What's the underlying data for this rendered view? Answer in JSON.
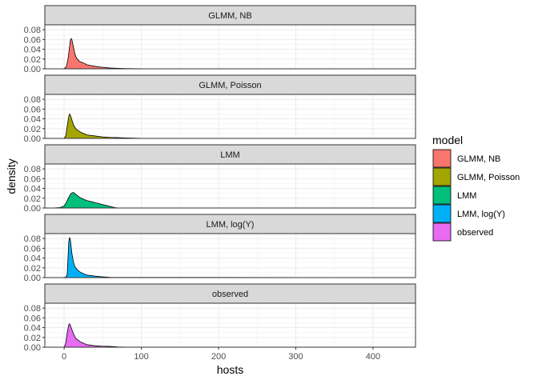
{
  "chart_data": {
    "type": "area",
    "subtype": "faceted density",
    "xlabel": "hosts",
    "ylabel": "density",
    "xlim": [
      -25,
      455
    ],
    "ylim": [
      0,
      0.09
    ],
    "x_ticks": [
      0,
      100,
      200,
      300,
      400
    ],
    "y_ticks": [
      0.0,
      0.02,
      0.04,
      0.06,
      0.08
    ],
    "y_tick_labels": [
      "0.00",
      "0.02",
      "0.04",
      "0.06",
      "0.08"
    ],
    "grid": true,
    "theme": "bw",
    "legend": {
      "title": "model",
      "position": "right",
      "entries": [
        {
          "label": "GLMM, NB",
          "color": "#F8766D"
        },
        {
          "label": "GLMM, Poisson",
          "color": "#A3A500"
        },
        {
          "label": "LMM",
          "color": "#00BF7D"
        },
        {
          "label": "LMM, log(Y)",
          "color": "#00B0F6"
        },
        {
          "label": "observed",
          "color": "#E76BF3"
        }
      ]
    },
    "facets": [
      {
        "label": "GLMM, NB",
        "color": "#F8766D",
        "x": [
          -15,
          0,
          3,
          5,
          7,
          8,
          9,
          10,
          12,
          14,
          16,
          20,
          25,
          30,
          40,
          50,
          60,
          70,
          80,
          100,
          435
        ],
        "density": [
          0,
          0,
          0.005,
          0.02,
          0.045,
          0.058,
          0.062,
          0.06,
          0.045,
          0.03,
          0.022,
          0.015,
          0.012,
          0.008,
          0.005,
          0.003,
          0.0015,
          0.001,
          0.0005,
          0.0002,
          0
        ]
      },
      {
        "label": "GLMM, Poisson",
        "color": "#A3A500",
        "x": [
          -15,
          0,
          2,
          4,
          6,
          7,
          8,
          10,
          12,
          15,
          20,
          25,
          30,
          40,
          50,
          60,
          70,
          80,
          90,
          100,
          435
        ],
        "density": [
          0,
          0,
          0.005,
          0.025,
          0.045,
          0.05,
          0.048,
          0.038,
          0.028,
          0.02,
          0.014,
          0.01,
          0.007,
          0.005,
          0.003,
          0.002,
          0.0015,
          0.001,
          0.0005,
          0.0001,
          0
        ]
      },
      {
        "label": "LMM",
        "color": "#00BF7D",
        "x": [
          -15,
          -5,
          0,
          3,
          6,
          9,
          12,
          15,
          20,
          25,
          30,
          35,
          40,
          45,
          50,
          55,
          60,
          65,
          70,
          435
        ],
        "density": [
          0,
          0.001,
          0.004,
          0.012,
          0.022,
          0.03,
          0.032,
          0.028,
          0.022,
          0.018,
          0.015,
          0.013,
          0.011,
          0.009,
          0.007,
          0.005,
          0.003,
          0.001,
          0,
          0
        ]
      },
      {
        "label": "LMM, log(Y)",
        "color": "#00B0F6",
        "x": [
          -15,
          0,
          3,
          4,
          5,
          6,
          7,
          8,
          10,
          12,
          14,
          16,
          20,
          25,
          30,
          40,
          50,
          60,
          435
        ],
        "density": [
          0,
          0,
          0.002,
          0.008,
          0.04,
          0.074,
          0.082,
          0.078,
          0.05,
          0.032,
          0.022,
          0.018,
          0.012,
          0.008,
          0.005,
          0.003,
          0.0015,
          0.0005,
          0
        ]
      },
      {
        "label": "observed",
        "color": "#E76BF3",
        "x": [
          -15,
          0,
          2,
          4,
          6,
          7,
          8,
          10,
          12,
          15,
          20,
          25,
          30,
          35,
          40,
          50,
          60,
          70,
          80,
          435
        ],
        "density": [
          0,
          0,
          0.008,
          0.03,
          0.046,
          0.048,
          0.045,
          0.036,
          0.028,
          0.018,
          0.012,
          0.008,
          0.005,
          0.004,
          0.003,
          0.002,
          0.0015,
          0.0005,
          0.0001,
          0
        ]
      }
    ]
  }
}
